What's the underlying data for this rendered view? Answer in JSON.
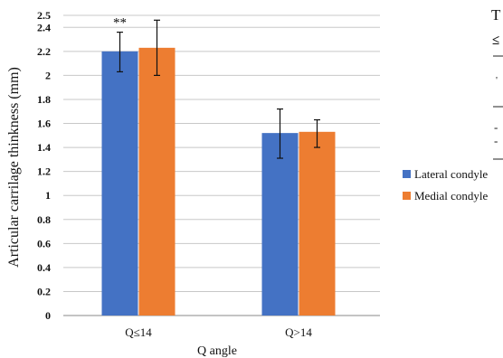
{
  "chart_data": {
    "type": "bar",
    "title": "",
    "xlabel": "Q angle",
    "ylabel": "Articular carrilage thinkness (mm)",
    "categories": [
      "Q≤14",
      "Q>14"
    ],
    "y_ticks": [
      "0",
      "0.2",
      "0.4",
      "0.6",
      "0.8",
      "1",
      "1.2",
      "1.4",
      "1.6",
      "1.8",
      "2",
      "2.2",
      "2.4",
      "2.5"
    ],
    "y_tick_values": [
      0,
      0.2,
      0.4,
      0.6,
      0.8,
      1.0,
      1.2,
      1.4,
      1.6,
      1.8,
      2.0,
      2.2,
      2.4,
      2.5
    ],
    "ylim": [
      0,
      2.5
    ],
    "grid": true,
    "legend_position": "right",
    "series": [
      {
        "name": "Lateral condyle",
        "color": "#4472c4",
        "values": [
          2.2,
          1.52
        ],
        "error": [
          [
            0.17,
            0.16
          ],
          [
            0.21,
            0.2
          ]
        ]
      },
      {
        "name": "Medial condyle",
        "color": "#ed7d31",
        "values": [
          2.23,
          1.53
        ],
        "error": [
          [
            0.23,
            0.23
          ],
          [
            0.13,
            0.1
          ]
        ]
      }
    ],
    "annotations": [
      {
        "text": "**",
        "category": "Q≤14",
        "series": "Lateral condyle"
      }
    ]
  },
  "edge_text": {
    "top": "T",
    "second": "≤",
    "tick_a": "-",
    "tick_b": "-"
  }
}
